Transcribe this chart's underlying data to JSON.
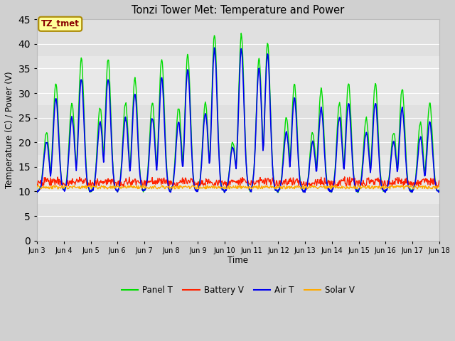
{
  "title": "Tonzi Tower Met: Temperature and Power",
  "xlabel": "Time",
  "ylabel": "Temperature (C) / Power (V)",
  "ylim": [
    0,
    45
  ],
  "yticks": [
    0,
    5,
    10,
    15,
    20,
    25,
    30,
    35,
    40,
    45
  ],
  "x_labels": [
    "Jun 3",
    "Jun 4",
    "Jun 5",
    "Jun 6",
    "Jun 7",
    "Jun 8",
    "Jun 9",
    "Jun 10",
    "Jun 11",
    "Jun 12",
    "Jun 13",
    "Jun 14",
    "Jun 15",
    "Jun 16",
    "Jun 17",
    "Jun 18"
  ],
  "tz_label": "TZ_tmet",
  "colors": {
    "panel_t": "#00dd00",
    "battery_v": "#ff2200",
    "air_t": "#0000ee",
    "solar_v": "#ffaa00"
  },
  "bg_bands": [
    {
      "ymin": 37.5,
      "ymax": 45,
      "color": "#e0e0e0"
    },
    {
      "ymin": 27.5,
      "ymax": 37.5,
      "color": "#e8e8e8"
    },
    {
      "ymin": 17.5,
      "ymax": 27.5,
      "color": "#e0e0e0"
    },
    {
      "ymin": 7.5,
      "ymax": 17.5,
      "color": "#e8e8e8"
    },
    {
      "ymin": 0,
      "ymax": 7.5,
      "color": "#e0e0e0"
    }
  ],
  "legend_labels": [
    "Panel T",
    "Battery V",
    "Air T",
    "Solar V"
  ]
}
